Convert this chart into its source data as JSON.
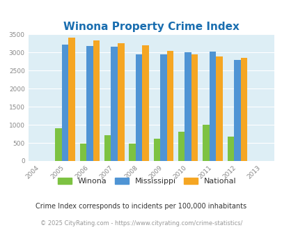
{
  "title": "Winona Property Crime Index",
  "years": [
    2004,
    2005,
    2006,
    2007,
    2008,
    2009,
    2010,
    2011,
    2012,
    2013
  ],
  "winona": [
    0,
    900,
    475,
    720,
    475,
    620,
    810,
    1000,
    675,
    0
  ],
  "mississippi": [
    0,
    3230,
    3190,
    3170,
    2950,
    2950,
    3000,
    3030,
    2800,
    0
  ],
  "national": [
    0,
    3420,
    3330,
    3255,
    3210,
    3040,
    2960,
    2890,
    2860,
    0
  ],
  "bar_width": 0.27,
  "colors": {
    "winona": "#7dc242",
    "mississippi": "#4f94d4",
    "national": "#f5a623"
  },
  "ylim": [
    0,
    3500
  ],
  "yticks": [
    0,
    500,
    1000,
    1500,
    2000,
    2500,
    3000,
    3500
  ],
  "bg_color": "#ddeef5",
  "fig_bg": "#ffffff",
  "title_color": "#1a6eb0",
  "footnote1": "Crime Index corresponds to incidents per 100,000 inhabitants",
  "footnote2": "© 2025 CityRating.com - https://www.cityrating.com/crime-statistics/",
  "legend_labels": [
    "Winona",
    "Mississippi",
    "National"
  ]
}
